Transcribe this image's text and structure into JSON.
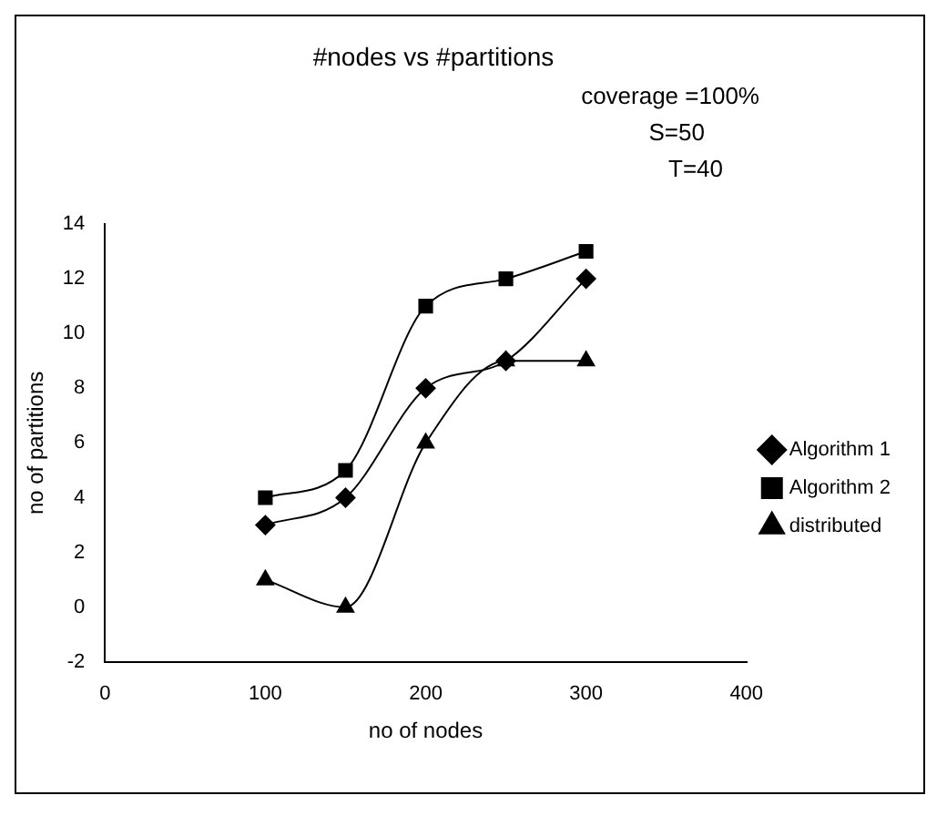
{
  "chart_data": {
    "type": "line",
    "title": "#nodes vs #partitions",
    "xlabel": "no of nodes",
    "ylabel": "no of partitions",
    "annotations": [
      "coverage =100%",
      "S=50",
      "T=40"
    ],
    "x": [
      100,
      150,
      200,
      250,
      300
    ],
    "series": [
      {
        "name": "Algorithm 1",
        "color": "#000000",
        "marker": "diamond",
        "values": [
          3,
          4,
          8,
          9,
          12
        ]
      },
      {
        "name": "Algorithm 2",
        "color": "#000000",
        "marker": "square",
        "values": [
          4,
          5,
          11,
          12,
          13
        ]
      },
      {
        "name": "distributed",
        "color": "#000000",
        "marker": "triangle",
        "values": [
          1,
          0,
          6,
          9,
          9
        ]
      }
    ],
    "xlim": [
      0,
      400
    ],
    "xticks": [
      0,
      100,
      200,
      300,
      400
    ],
    "ylim": [
      -2,
      14
    ],
    "yticks": [
      -2,
      0,
      2,
      4,
      6,
      8,
      10,
      12,
      14
    ],
    "grid": false,
    "legend": "right",
    "line_style": "solid"
  }
}
